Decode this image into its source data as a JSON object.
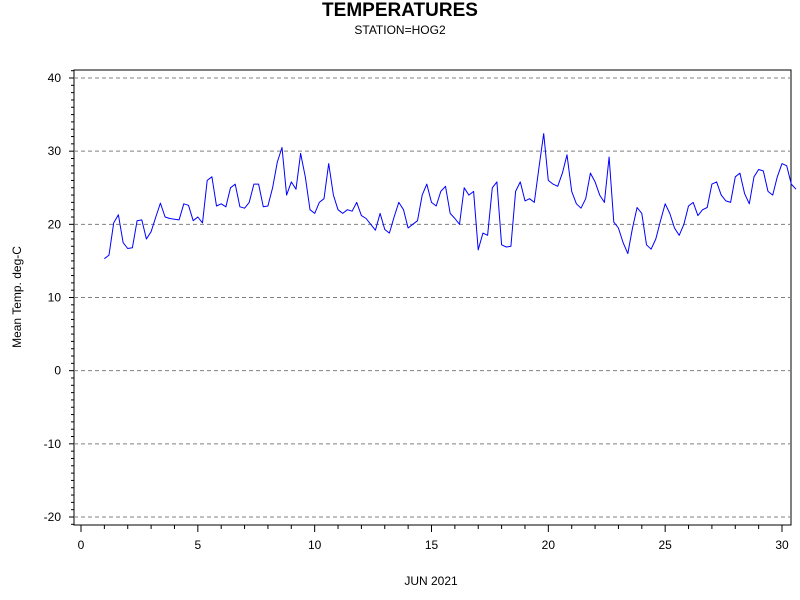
{
  "chart_data": {
    "type": "line",
    "title": "TEMPERATURES",
    "subtitle": "STATION=HOG2",
    "xlabel": "JUN 2021",
    "ylabel": "Mean Temp. deg-C",
    "xlim": [
      0,
      30.2
    ],
    "ylim": [
      -21.5,
      41
    ],
    "x_ticks": [
      0,
      5,
      10,
      15,
      20,
      25,
      30
    ],
    "y_ticks": [
      -20,
      -10,
      0,
      10,
      20,
      30,
      40
    ],
    "grid": "dashed horizontal at major y ticks",
    "series": [
      {
        "color": "#0000ff",
        "points": [
          [
            1.0,
            15.3
          ],
          [
            1.2,
            15.8
          ],
          [
            1.4,
            20.2
          ],
          [
            1.6,
            21.3
          ],
          [
            1.8,
            17.5
          ],
          [
            2.0,
            16.7
          ],
          [
            2.2,
            16.8
          ],
          [
            2.4,
            20.5
          ],
          [
            2.6,
            20.6
          ],
          [
            2.8,
            18.0
          ],
          [
            3.0,
            19.0
          ],
          [
            3.2,
            21.0
          ],
          [
            3.4,
            22.9
          ],
          [
            3.6,
            21.0
          ],
          [
            3.8,
            20.8
          ],
          [
            4.0,
            20.7
          ],
          [
            4.2,
            20.6
          ],
          [
            4.4,
            22.8
          ],
          [
            4.6,
            22.6
          ],
          [
            4.8,
            20.5
          ],
          [
            5.0,
            21.0
          ],
          [
            5.2,
            20.2
          ],
          [
            5.4,
            26.0
          ],
          [
            5.6,
            26.5
          ],
          [
            5.8,
            22.5
          ],
          [
            6.0,
            22.8
          ],
          [
            6.2,
            22.4
          ],
          [
            6.4,
            25.0
          ],
          [
            6.6,
            25.5
          ],
          [
            6.8,
            22.4
          ],
          [
            7.0,
            22.2
          ],
          [
            7.2,
            23.0
          ],
          [
            7.4,
            25.5
          ],
          [
            7.6,
            25.5
          ],
          [
            7.8,
            22.4
          ],
          [
            8.0,
            22.5
          ],
          [
            8.2,
            25.0
          ],
          [
            8.4,
            28.5
          ],
          [
            8.6,
            30.5
          ],
          [
            8.8,
            24.0
          ],
          [
            9.0,
            25.8
          ],
          [
            9.2,
            24.8
          ],
          [
            9.4,
            29.7
          ],
          [
            9.6,
            26.5
          ],
          [
            9.8,
            22.0
          ],
          [
            10.0,
            21.5
          ],
          [
            10.2,
            23.0
          ],
          [
            10.4,
            23.5
          ],
          [
            10.6,
            28.3
          ],
          [
            10.8,
            24.0
          ],
          [
            11.0,
            22.0
          ],
          [
            11.2,
            21.5
          ],
          [
            11.4,
            22.0
          ],
          [
            11.6,
            21.8
          ],
          [
            11.8,
            23.0
          ],
          [
            12.0,
            21.2
          ],
          [
            12.2,
            20.8
          ],
          [
            12.4,
            20.0
          ],
          [
            12.6,
            19.2
          ],
          [
            12.8,
            21.5
          ],
          [
            13.0,
            19.3
          ],
          [
            13.2,
            18.8
          ],
          [
            13.4,
            21.0
          ],
          [
            13.6,
            23.0
          ],
          [
            13.8,
            22.0
          ],
          [
            14.0,
            19.5
          ],
          [
            14.2,
            20.0
          ],
          [
            14.4,
            20.5
          ],
          [
            14.6,
            24.0
          ],
          [
            14.8,
            25.5
          ],
          [
            15.0,
            23.0
          ],
          [
            15.2,
            22.5
          ],
          [
            15.4,
            24.5
          ],
          [
            15.6,
            25.2
          ],
          [
            15.8,
            21.5
          ],
          [
            16.0,
            20.8
          ],
          [
            16.2,
            20.0
          ],
          [
            16.4,
            25.0
          ],
          [
            16.6,
            24.0
          ],
          [
            16.8,
            24.5
          ],
          [
            17.0,
            16.5
          ],
          [
            17.2,
            18.8
          ],
          [
            17.4,
            18.5
          ],
          [
            17.6,
            25.0
          ],
          [
            17.8,
            25.8
          ],
          [
            18.0,
            17.2
          ],
          [
            18.2,
            16.9
          ],
          [
            18.4,
            17.0
          ],
          [
            18.6,
            24.5
          ],
          [
            18.8,
            25.8
          ],
          [
            19.0,
            23.2
          ],
          [
            19.2,
            23.5
          ],
          [
            19.4,
            23.0
          ],
          [
            19.6,
            27.8
          ],
          [
            19.8,
            32.4
          ],
          [
            20.0,
            26.0
          ],
          [
            20.2,
            25.5
          ],
          [
            20.4,
            25.2
          ],
          [
            20.6,
            27.0
          ],
          [
            20.8,
            29.5
          ],
          [
            21.0,
            24.5
          ],
          [
            21.2,
            22.8
          ],
          [
            21.4,
            22.2
          ],
          [
            21.6,
            23.5
          ],
          [
            21.8,
            27.0
          ],
          [
            22.0,
            25.8
          ],
          [
            22.2,
            24.0
          ],
          [
            22.4,
            23.0
          ],
          [
            22.6,
            29.2
          ],
          [
            22.8,
            20.3
          ],
          [
            23.0,
            19.5
          ],
          [
            23.2,
            17.5
          ],
          [
            23.4,
            16.0
          ],
          [
            23.6,
            19.5
          ],
          [
            23.8,
            22.3
          ],
          [
            24.0,
            21.5
          ],
          [
            24.2,
            17.2
          ],
          [
            24.4,
            16.6
          ],
          [
            24.6,
            18.0
          ],
          [
            24.8,
            20.5
          ],
          [
            25.0,
            22.8
          ],
          [
            25.2,
            21.5
          ],
          [
            25.4,
            19.5
          ],
          [
            25.6,
            18.5
          ],
          [
            25.8,
            20.0
          ],
          [
            26.0,
            22.5
          ],
          [
            26.2,
            23.0
          ],
          [
            26.4,
            21.2
          ],
          [
            26.6,
            22.0
          ],
          [
            26.8,
            22.3
          ],
          [
            27.0,
            25.5
          ],
          [
            27.2,
            25.8
          ],
          [
            27.4,
            24.0
          ],
          [
            27.6,
            23.2
          ],
          [
            27.8,
            23.0
          ],
          [
            28.0,
            26.5
          ],
          [
            28.2,
            27.0
          ],
          [
            28.4,
            24.2
          ],
          [
            28.6,
            22.8
          ],
          [
            28.8,
            26.5
          ],
          [
            29.0,
            27.5
          ],
          [
            29.2,
            27.3
          ],
          [
            29.4,
            24.5
          ],
          [
            29.6,
            24.0
          ],
          [
            29.8,
            26.5
          ],
          [
            30.0,
            28.3
          ],
          [
            30.2,
            28.0
          ],
          [
            30.4,
            25.5
          ],
          [
            30.6,
            24.8
          ]
        ]
      }
    ]
  }
}
